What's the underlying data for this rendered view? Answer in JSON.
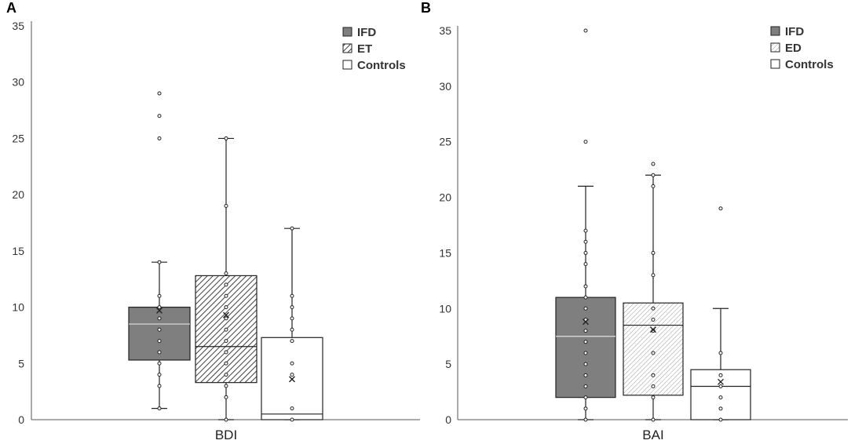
{
  "chart_data": [
    {
      "type": "box",
      "panel_label": "A",
      "xlabel": "BDI",
      "ylim": [
        0,
        35
      ],
      "yticks": [
        "0",
        "5",
        "10",
        "15",
        "20",
        "25",
        "30",
        "35"
      ],
      "legend_position": "top-right",
      "series": [
        {
          "name": "IFD",
          "fill": "solid",
          "color": "#7f7f7f",
          "whisker_low": 1,
          "q1": 5.3,
          "median": 8.5,
          "q3": 10,
          "whisker_high": 14,
          "mean": 9.7,
          "points": [
            1,
            3,
            4,
            5,
            6,
            7,
            8,
            9,
            10,
            11,
            14,
            25,
            27,
            29
          ]
        },
        {
          "name": "ET",
          "fill": "hatch",
          "color": "#ffffff",
          "whisker_low": 0,
          "q1": 3.3,
          "median": 6.5,
          "q3": 12.8,
          "whisker_high": 25,
          "mean": 9.3,
          "points": [
            0,
            2,
            3,
            4,
            5,
            6,
            7,
            8,
            9,
            10,
            11,
            12,
            13,
            19,
            25
          ]
        },
        {
          "name": "Controls",
          "fill": "empty",
          "color": "#ffffff",
          "whisker_low": 0,
          "q1": 0,
          "median": 0.5,
          "q3": 7.3,
          "whisker_high": 17,
          "mean": 3.6,
          "points": [
            0,
            1,
            4,
            5,
            7,
            8,
            9,
            10,
            11,
            17
          ]
        }
      ]
    },
    {
      "type": "box",
      "panel_label": "B",
      "xlabel": "BAI",
      "ylim": [
        0,
        35
      ],
      "yticks": [
        "0",
        "5",
        "10",
        "15",
        "20",
        "25",
        "30",
        "35"
      ],
      "legend_position": "top-right",
      "series": [
        {
          "name": "IFD",
          "fill": "solid",
          "color": "#7f7f7f",
          "whisker_low": 0,
          "q1": 2,
          "median": 7.5,
          "q3": 11,
          "whisker_high": 21,
          "mean": 8.8,
          "points": [
            0,
            1,
            2,
            3,
            4,
            5,
            6,
            7,
            8,
            9,
            10,
            11,
            12,
            14,
            15,
            16,
            17,
            25,
            35
          ]
        },
        {
          "name": "ED",
          "fill": "hatch-light",
          "color": "#ffffff",
          "whisker_low": 0,
          "q1": 2.2,
          "median": 8.5,
          "q3": 10.5,
          "whisker_high": 22,
          "mean": 8.1,
          "points": [
            0,
            2,
            3,
            4,
            6,
            8,
            9,
            10,
            13,
            15,
            21,
            22,
            23
          ]
        },
        {
          "name": "Controls",
          "fill": "empty",
          "color": "#ffffff",
          "whisker_low": 0,
          "q1": 0,
          "median": 3,
          "q3": 4.5,
          "whisker_high": 10,
          "mean": 3.4,
          "points": [
            0,
            1,
            2,
            3,
            4,
            6,
            19
          ]
        }
      ]
    }
  ]
}
